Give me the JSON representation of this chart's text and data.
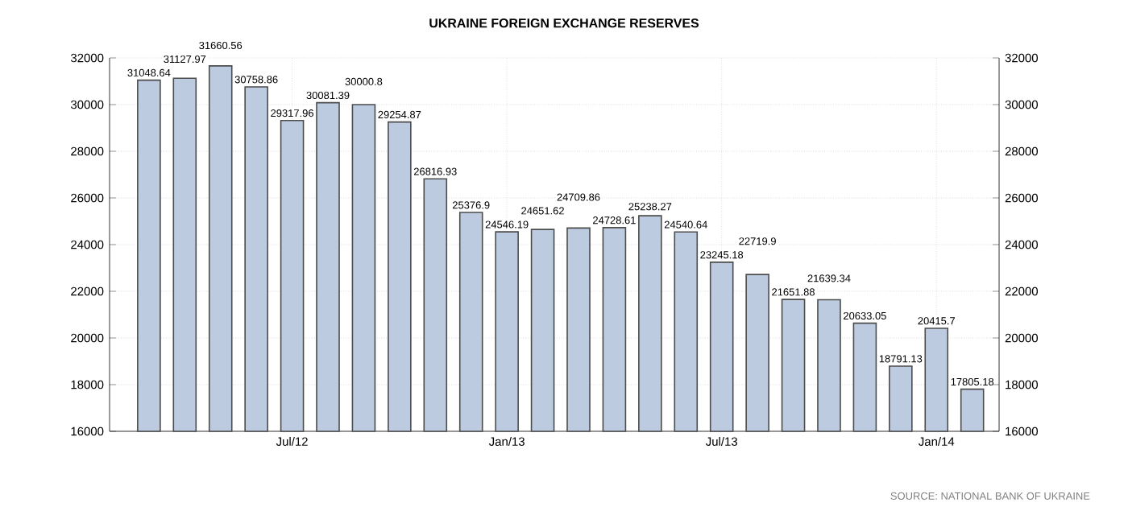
{
  "chart_data": {
    "type": "bar",
    "title": "UKRAINE FOREIGN EXCHANGE RESERVES",
    "categories": [
      null,
      null,
      null,
      null,
      "Jul/12",
      null,
      null,
      null,
      null,
      null,
      "Jan/13",
      null,
      null,
      null,
      null,
      null,
      "Jul/13",
      null,
      null,
      null,
      null,
      null,
      "Jan/14",
      null
    ],
    "values": [
      31048.64,
      31127.97,
      31660.56,
      30758.86,
      29317.96,
      30081.39,
      30000.8,
      29254.87,
      26816.93,
      25376.9,
      24546.19,
      24651.62,
      24709.86,
      24728.61,
      25238.27,
      24540.64,
      23245.18,
      22719.9,
      21651.88,
      21639.34,
      20633.05,
      18791.13,
      20415.7,
      17805.18
    ],
    "color": "#bccbe0",
    "ylim": [
      16000,
      32000
    ],
    "yticks": [
      16000,
      18000,
      20000,
      22000,
      24000,
      26000,
      28000,
      30000,
      32000
    ],
    "y2lim": [
      16000,
      32000
    ],
    "y2ticks": [
      16000,
      18000,
      20000,
      22000,
      24000,
      26000,
      28000,
      30000,
      32000
    ],
    "grid": true,
    "data_labels": true,
    "annotations": [
      "SOURCE: NATIONAL BANK OF UKRAINE"
    ]
  }
}
